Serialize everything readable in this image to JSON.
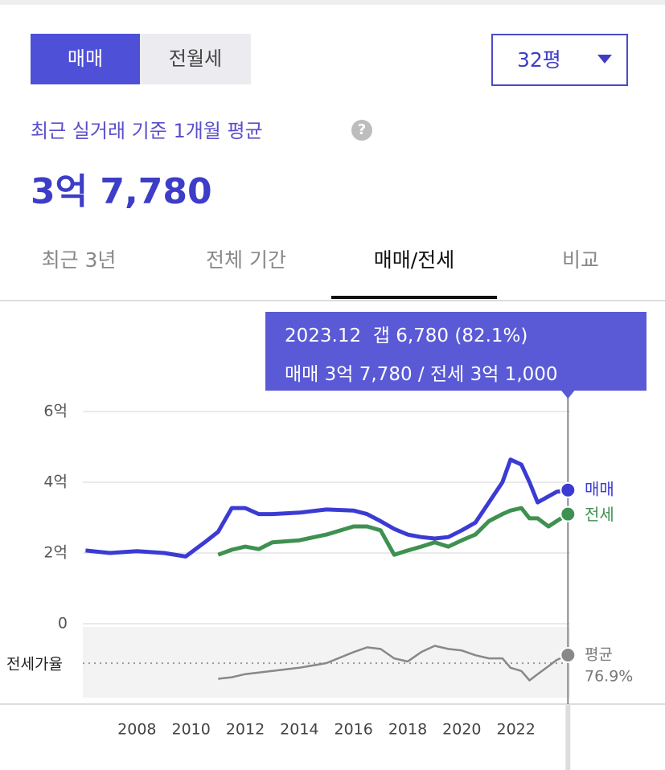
{
  "toggle": [
    "매매",
    "전월세"
  ],
  "dropdown": "32평",
  "summary_label": "최근 실거래 기준 1개월 평균",
  "help_icon": "?",
  "summary_value": "3억 7,780",
  "tabs": [
    "최근 3년",
    "전체 기간",
    "매매/전세",
    "비교"
  ],
  "tooltip": [
    "2023.12  갭 6,780 (82.1%)",
    "매매 3억 7,780 / 전세 3억 1,000"
  ],
  "chart_data": [
    {
      "type": "line",
      "x": [
        2006.1,
        2007,
        2008,
        2009,
        2009.8,
        2010.5,
        2011,
        2011.5,
        2012,
        2012.5,
        2013,
        2014,
        2015,
        2016,
        2016.5,
        2017,
        2017.5,
        2018,
        2018.5,
        2019,
        2019.5,
        2020,
        2020.5,
        2021,
        2021.5,
        2021.8,
        2022.2,
        2022.5,
        2022.8,
        2023.2,
        2023.5,
        2023.92
      ],
      "series": [
        {
          "name": "매매",
          "color": "#3b3bd4",
          "values": [
            2.07,
            2.0,
            2.05,
            2.0,
            1.9,
            2.3,
            2.6,
            3.27,
            3.27,
            3.1,
            3.1,
            3.14,
            3.23,
            3.2,
            3.1,
            2.9,
            2.68,
            2.52,
            2.45,
            2.41,
            2.45,
            2.64,
            2.86,
            3.43,
            4.0,
            4.64,
            4.5,
            4.0,
            3.43,
            3.6,
            3.73,
            3.778
          ]
        },
        {
          "name": "전세",
          "color": "#3e9150",
          "values": [
            null,
            null,
            null,
            null,
            null,
            null,
            1.95,
            2.09,
            2.18,
            2.11,
            2.3,
            2.36,
            2.52,
            2.75,
            2.75,
            2.64,
            1.95,
            2.07,
            2.18,
            2.3,
            2.18,
            2.36,
            2.52,
            2.9,
            3.1,
            3.2,
            3.27,
            2.98,
            2.98,
            2.75,
            2.9,
            3.1
          ]
        }
      ],
      "xlim": [
        2006,
        2024
      ],
      "xticks": [
        2008,
        2010,
        2012,
        2014,
        2016,
        2018,
        2020,
        2022
      ],
      "ylim": [
        0,
        6.8
      ],
      "yticks": [
        {
          "value": 0,
          "label": "0"
        },
        {
          "value": 2,
          "label": "2억"
        },
        {
          "value": 4,
          "label": "4억"
        },
        {
          "value": 6,
          "label": "6억"
        }
      ],
      "grid": true
    },
    {
      "type": "line",
      "y_label": "전세가율",
      "x": [
        2006.1,
        2007,
        2008,
        2009,
        2009.8,
        2010.5,
        2011,
        2011.5,
        2012,
        2012.5,
        2013,
        2014,
        2015,
        2016,
        2016.5,
        2017,
        2017.5,
        2018,
        2018.5,
        2019,
        2019.5,
        2020,
        2020.5,
        2021,
        2021.5,
        2021.8,
        2022.2,
        2022.5,
        2022.8,
        2023.2,
        2023.5,
        2023.92
      ],
      "series": [
        {
          "color": "#888888",
          "values": [
            null,
            null,
            null,
            null,
            null,
            null,
            67,
            68,
            70,
            71,
            72,
            74,
            77,
            84,
            87,
            86,
            80,
            78,
            84,
            88,
            86,
            85,
            82,
            80,
            80,
            74,
            72,
            66,
            70,
            75,
            79,
            82.1
          ]
        }
      ],
      "average": {
        "label": "평균",
        "value": 76.9,
        "value_label": "76.9%"
      },
      "xlim": [
        2006,
        2024
      ],
      "ylim": [
        55,
        100
      ]
    }
  ]
}
